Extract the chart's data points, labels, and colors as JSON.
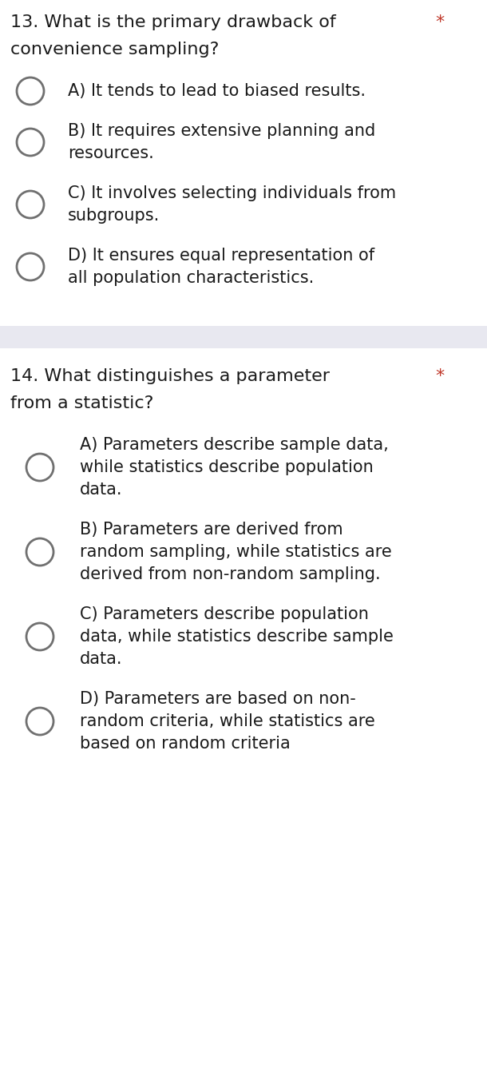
{
  "bg_color": "#ffffff",
  "separator_color": "#e8e8f0",
  "text_color": "#1a1a1a",
  "circle_edge_color": "#707070",
  "star_color": "#c0392b",
  "font_size_question": 16,
  "font_size_option": 15,
  "fig_width": 6.1,
  "fig_height": 13.47,
  "q1": {
    "number": "13.",
    "line1": "What is the primary drawback of",
    "line2": "convenience sampling?",
    "star": "*",
    "options": [
      [
        "A) It tends to lead to biased results."
      ],
      [
        "B) It requires extensive planning and",
        "resources."
      ],
      [
        "C) It involves selecting individuals from",
        "subgroups."
      ],
      [
        "D) It ensures equal representation of",
        "all population characteristics."
      ]
    ]
  },
  "q2": {
    "number": "14.",
    "line1": "What distinguishes a parameter",
    "line2": "from a statistic?",
    "star": "*",
    "options": [
      [
        "A) Parameters describe sample data,",
        "while statistics describe population",
        "data."
      ],
      [
        "B) Parameters are derived from",
        "random sampling, while statistics are",
        "derived from non-random sampling."
      ],
      [
        "C) Parameters describe population",
        "data, while statistics describe sample",
        "data."
      ],
      [
        "D) Parameters are based on non-",
        "random criteria, while statistics are",
        "based on random criteria"
      ]
    ]
  }
}
